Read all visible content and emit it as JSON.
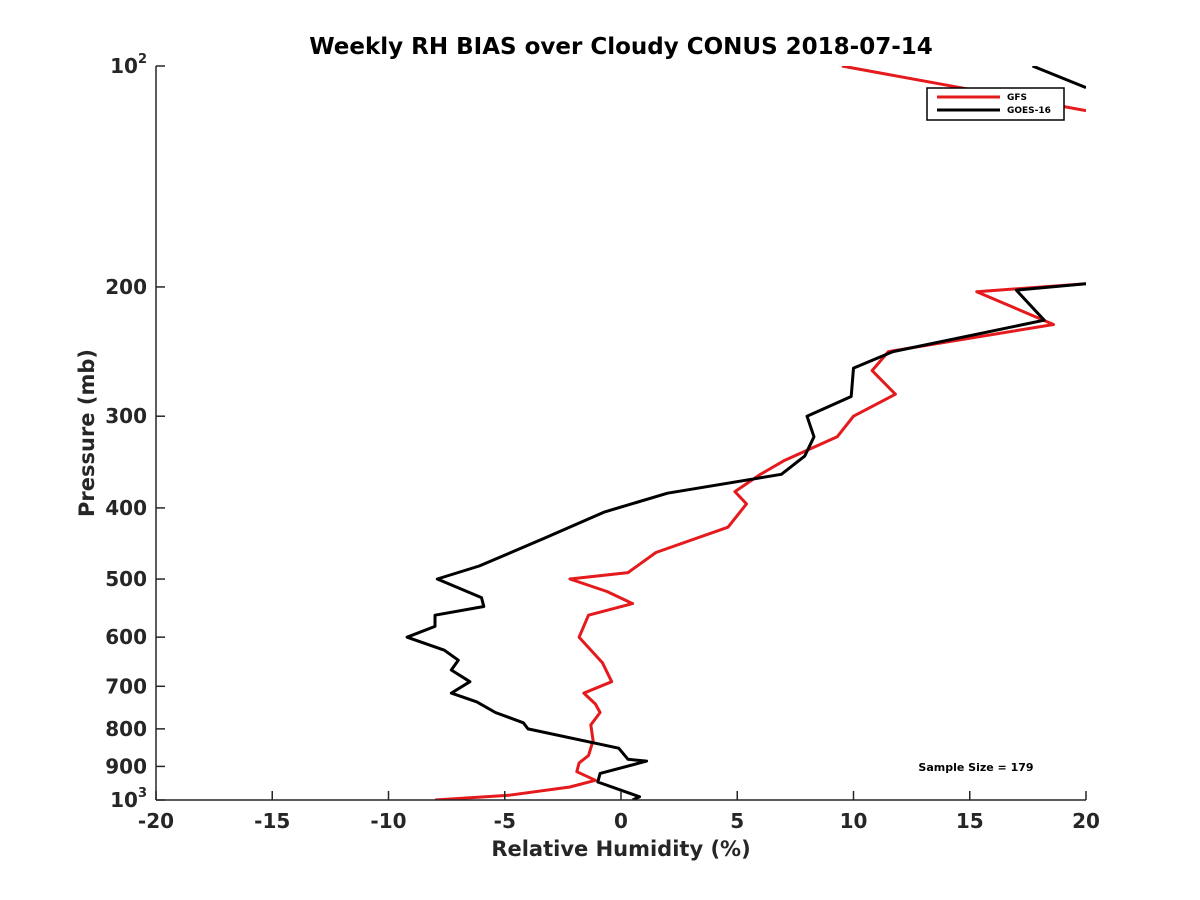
{
  "chart_data": {
    "type": "line",
    "title": "Weekly RH BIAS over Cloudy CONUS 2018-07-14",
    "xlabel": "Relative Humidity (%)",
    "ylabel": "Pressure (mb)",
    "xlim": [
      -20,
      20
    ],
    "ylim": [
      100,
      1000
    ],
    "y_scale": "log",
    "y_reversed": true,
    "grid": false,
    "legend_placement": "top-right",
    "annotation": "Sample Size = 179",
    "x_ticks": [
      {
        "value": -20,
        "label": "-20"
      },
      {
        "value": -15,
        "label": "-15"
      },
      {
        "value": -10,
        "label": "-10"
      },
      {
        "value": -5,
        "label": "-5"
      },
      {
        "value": 0,
        "label": "0"
      },
      {
        "value": 5,
        "label": "5"
      },
      {
        "value": 10,
        "label": "10"
      },
      {
        "value": 15,
        "label": "15"
      },
      {
        "value": 20,
        "label": "20"
      }
    ],
    "y_ticks": [
      {
        "value": 100,
        "base": "10",
        "exp": "2"
      },
      {
        "value": 200,
        "base": "200",
        "exp": ""
      },
      {
        "value": 300,
        "base": "300",
        "exp": ""
      },
      {
        "value": 400,
        "base": "400",
        "exp": ""
      },
      {
        "value": 500,
        "base": "500",
        "exp": ""
      },
      {
        "value": 600,
        "base": "600",
        "exp": ""
      },
      {
        "value": 700,
        "base": "700",
        "exp": ""
      },
      {
        "value": 800,
        "base": "800",
        "exp": ""
      },
      {
        "value": 900,
        "base": "900",
        "exp": ""
      },
      {
        "value": 1000,
        "base": "10",
        "exp": "3"
      }
    ],
    "series": [
      {
        "name": "GFS",
        "color": "#e41a1c",
        "segments": [
          [
            [
              9.5,
              100
            ],
            [
              20,
              115
            ]
          ],
          [
            [
              20,
              198
            ],
            [
              15.3,
              203
            ],
            [
              18.6,
              225
            ],
            [
              11.5,
              245
            ],
            [
              10.8,
              260
            ],
            [
              11.8,
              280
            ],
            [
              10.0,
              300
            ],
            [
              9.3,
              320
            ],
            [
              7.0,
              345
            ],
            [
              6.0,
              360
            ],
            [
              4.9,
              380
            ],
            [
              5.4,
              395
            ],
            [
              4.6,
              425
            ],
            [
              1.5,
              460
            ],
            [
              0.3,
              490
            ],
            [
              -2.2,
              500
            ],
            [
              -0.6,
              520
            ],
            [
              0.5,
              540
            ],
            [
              -1.4,
              560
            ],
            [
              -1.8,
              600
            ],
            [
              -0.8,
              650
            ],
            [
              -0.4,
              690
            ],
            [
              -1.6,
              715
            ],
            [
              -1.1,
              740
            ],
            [
              -0.9,
              760
            ],
            [
              -1.3,
              790
            ],
            [
              -1.2,
              830
            ],
            [
              -1.4,
              870
            ],
            [
              -1.8,
              890
            ],
            [
              -1.9,
              915
            ],
            [
              -1.1,
              940
            ],
            [
              -2.2,
              960
            ],
            [
              -4.8,
              985
            ],
            [
              -8.0,
              1000
            ]
          ]
        ]
      },
      {
        "name": "GOES-16",
        "color": "#000000",
        "segments": [
          [
            [
              17.7,
              100
            ],
            [
              20,
              107
            ]
          ],
          [
            [
              20,
              198
            ],
            [
              17.0,
              202
            ],
            [
              18.2,
              222
            ],
            [
              11.7,
              245
            ],
            [
              10.0,
              258
            ],
            [
              9.9,
              282
            ],
            [
              8.0,
              300
            ],
            [
              8.3,
              320
            ],
            [
              7.9,
              340
            ],
            [
              6.9,
              360
            ],
            [
              2.0,
              382
            ],
            [
              -0.7,
              405
            ],
            [
              -3.3,
              440
            ],
            [
              -6.1,
              480
            ],
            [
              -7.9,
              500
            ],
            [
              -6.0,
              530
            ],
            [
              -5.9,
              545
            ],
            [
              -8.0,
              560
            ],
            [
              -8.0,
              580
            ],
            [
              -9.2,
              600
            ],
            [
              -7.6,
              625
            ],
            [
              -7.0,
              645
            ],
            [
              -7.3,
              665
            ],
            [
              -6.5,
              690
            ],
            [
              -7.3,
              715
            ],
            [
              -6.2,
              735
            ],
            [
              -5.4,
              760
            ],
            [
              -4.2,
              785
            ],
            [
              -4.0,
              800
            ],
            [
              -0.1,
              850
            ],
            [
              0.3,
              880
            ],
            [
              1.1,
              885
            ],
            [
              -0.9,
              920
            ],
            [
              -1.0,
              945
            ],
            [
              0.8,
              990
            ],
            [
              0.5,
              1000
            ]
          ]
        ]
      }
    ]
  }
}
